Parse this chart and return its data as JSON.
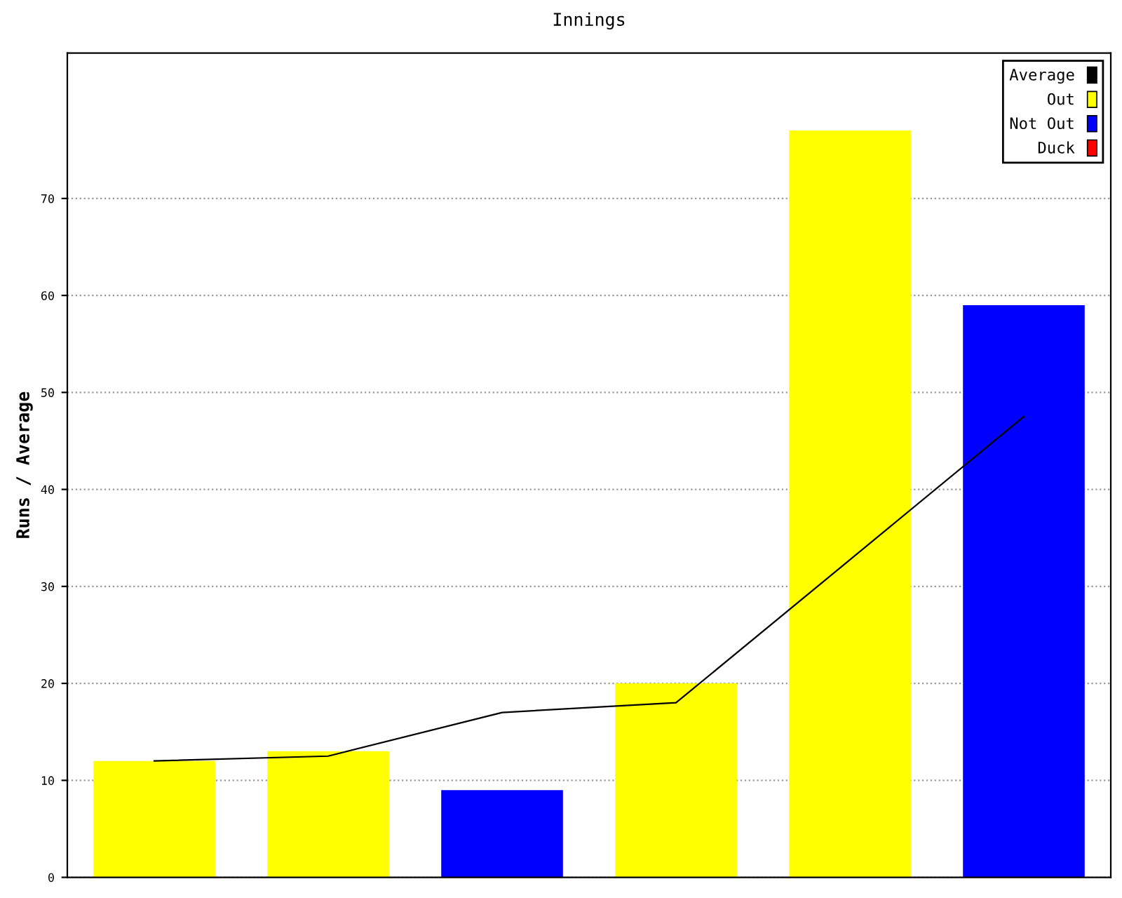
{
  "chart_data": {
    "type": "bar",
    "title": "Innings",
    "ylabel": "Runs / Average",
    "categories": [
      null,
      null,
      null,
      null,
      null,
      null
    ],
    "series": [
      {
        "name": "Average",
        "type": "line",
        "color": "#000000",
        "values": [
          12,
          12.5,
          17,
          18,
          32.75,
          47.5
        ]
      },
      {
        "name": "Out",
        "color": "#ffff00",
        "values": [
          12,
          13,
          null,
          20,
          77,
          null
        ]
      },
      {
        "name": "Not Out",
        "color": "#0000ff",
        "values": [
          null,
          null,
          9,
          null,
          null,
          59
        ]
      },
      {
        "name": "Duck",
        "color": "#ff0000",
        "values": [
          null,
          null,
          null,
          null,
          null,
          null
        ]
      }
    ],
    "ylim": [
      0,
      85
    ],
    "yticks": [
      0,
      10,
      20,
      30,
      40,
      50,
      60,
      70
    ],
    "grid": "y",
    "legend": "top right",
    "marker": "none",
    "line_style": "solid"
  }
}
